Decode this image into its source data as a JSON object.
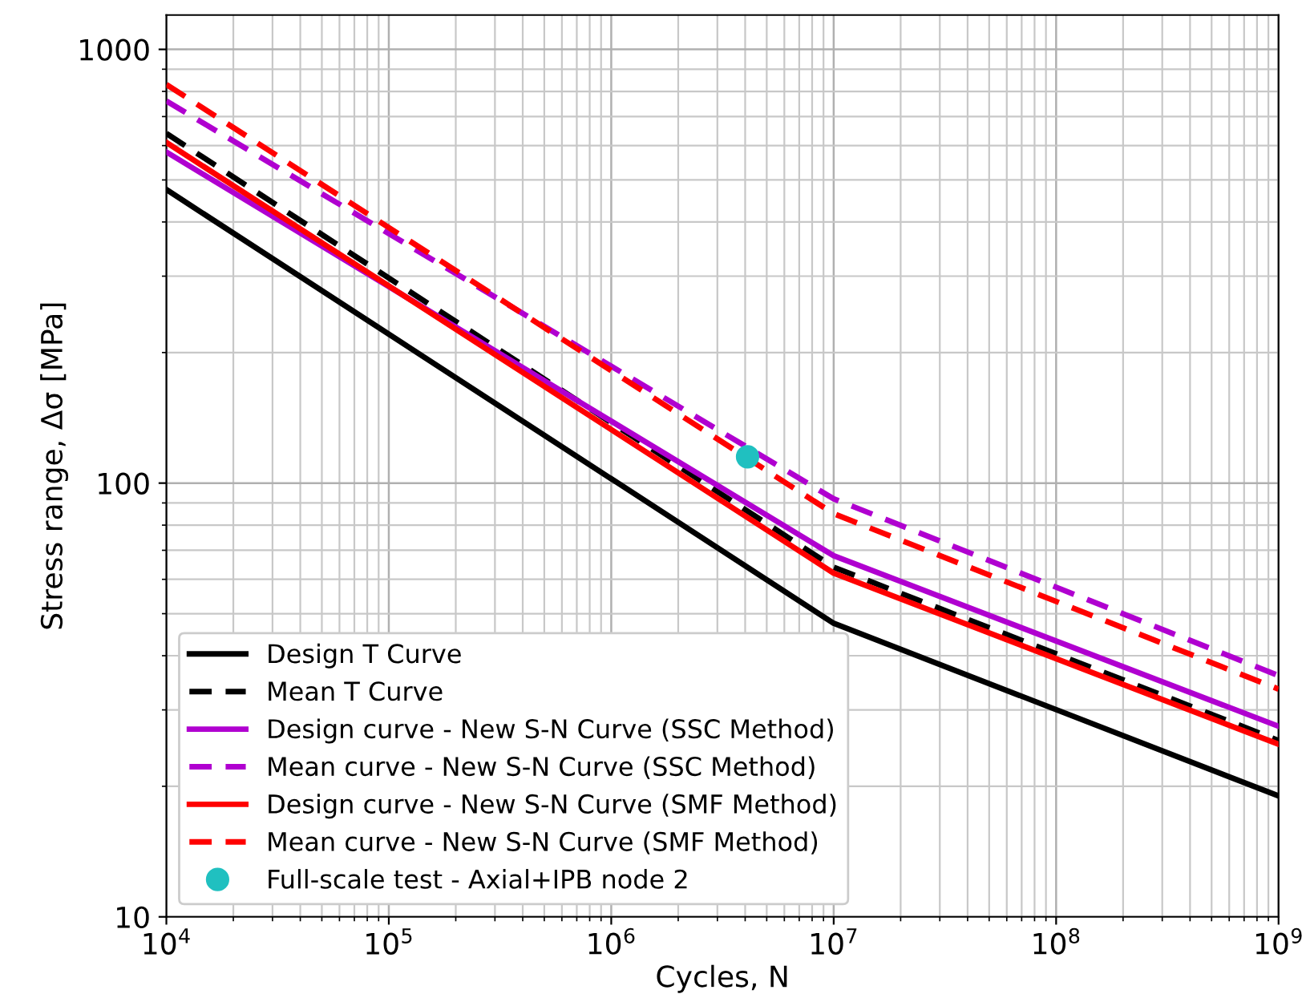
{
  "chart_data": {
    "type": "line",
    "xlabel": "Cycles, N",
    "ylabel": "Stress range, Δσ [MPa]",
    "log": "xy",
    "grid": "both",
    "legend": "bottom left",
    "xlim": [
      10000,
      1000000000
    ],
    "ylim": [
      10,
      1200
    ],
    "xticks": [
      {
        "value": 10000,
        "label": "10$^{4}$"
      },
      {
        "value": 100000,
        "label": "10$^{5}$"
      },
      {
        "value": 1000000,
        "label": "10$^{6}$"
      },
      {
        "value": 10000000,
        "label": "10$^{7}$"
      },
      {
        "value": 100000000,
        "label": "10$^{8}$"
      },
      {
        "value": 1000000000,
        "label": "10$^{9}$"
      }
    ],
    "yticks": [
      10,
      100,
      1000
    ],
    "series": [
      {
        "name": "Design T Curve",
        "color": "#000000",
        "line_style": "solid",
        "x": [
          10000,
          10000000,
          1000000000
        ],
        "values": [
          475,
          47.5,
          19
        ]
      },
      {
        "name": "Mean T Curve",
        "color": "#000000",
        "line_style": "dashed",
        "x": [
          10000,
          10000000,
          1000000000
        ],
        "values": [
          640,
          64,
          25.5
        ]
      },
      {
        "name": "Design curve - New S-N Curve (SSC Method)",
        "color": "#b000d0",
        "line_style": "solid",
        "x": [
          10000,
          10000000,
          1000000000
        ],
        "values": [
          580,
          68,
          27.5
        ]
      },
      {
        "name": "Mean curve - New S-N Curve (SSC Method)",
        "color": "#b000d0",
        "line_style": "dashed",
        "x": [
          10000,
          10000000,
          1000000000
        ],
        "values": [
          760,
          92,
          36
        ]
      },
      {
        "name": "Design curve - New S-N Curve (SMF Method)",
        "color": "#ff0000",
        "line_style": "solid",
        "x": [
          10000,
          10000000,
          1000000000
        ],
        "values": [
          610,
          62,
          25
        ]
      },
      {
        "name": "Mean curve - New S-N Curve (SMF Method)",
        "color": "#ff0000",
        "line_style": "dashed",
        "x": [
          10000,
          10000000,
          1000000000
        ],
        "values": [
          830,
          85,
          33.5
        ]
      },
      {
        "name": "Full-scale test - Axial+IPB node 2",
        "type": "scatter",
        "marker": "circle",
        "color": "#20c0c0",
        "x": [
          4100000
        ],
        "values": [
          115
        ]
      }
    ]
  }
}
